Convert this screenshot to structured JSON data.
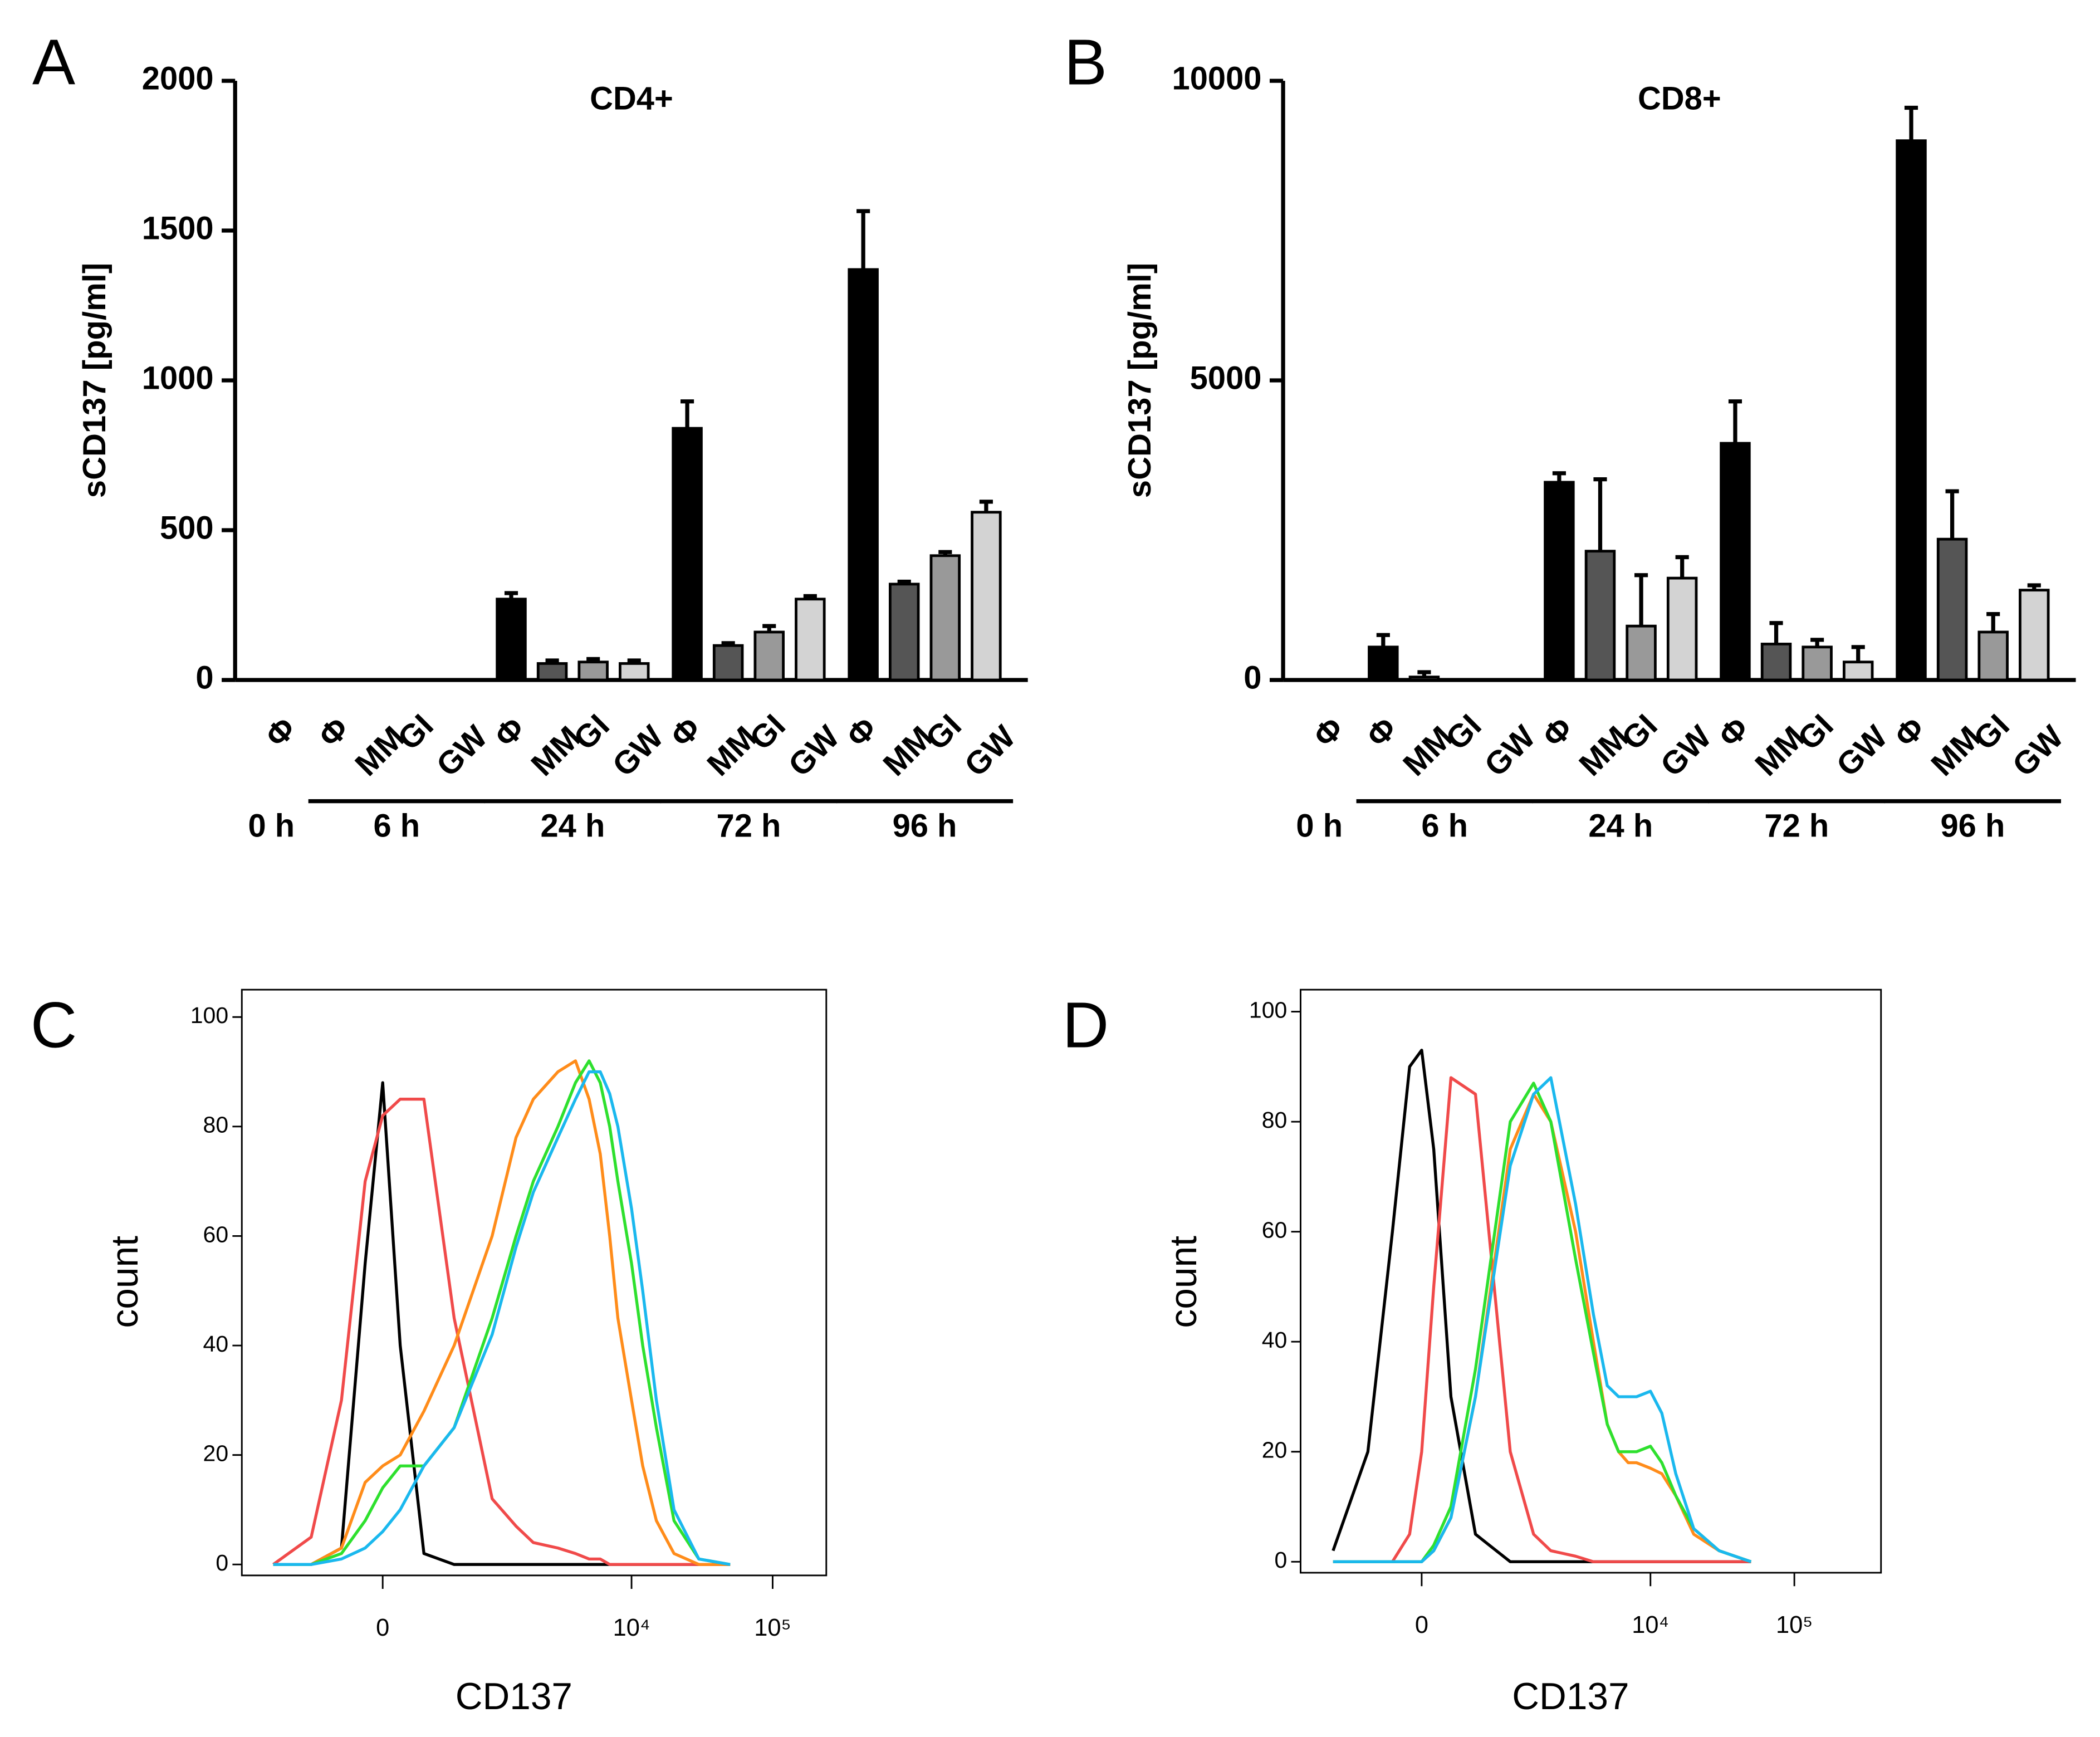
{
  "chart_data": [
    {
      "type": "bar",
      "panel": "A",
      "title": "CD4+",
      "ylabel": "sCD137 [pg/ml]",
      "ylim": [
        0,
        2000
      ],
      "yticks": [
        0,
        500,
        1000,
        1500,
        2000
      ],
      "colors": [
        "#000000",
        "#555555",
        "#999999",
        "#d3d3d3"
      ],
      "groups": [
        {
          "label": "0 h",
          "categories": [
            "Φ"
          ],
          "values": [
            0
          ],
          "errors": [
            0
          ]
        },
        {
          "label": "6 h",
          "categories": [
            "Φ",
            "MM",
            "GI",
            "GW"
          ],
          "values": [
            0,
            0,
            0,
            0
          ],
          "errors": [
            0,
            0,
            0,
            0
          ]
        },
        {
          "label": "24 h",
          "categories": [
            "Φ",
            "MM",
            "GI",
            "GW"
          ],
          "values": [
            270,
            55,
            60,
            55
          ],
          "errors": [
            20,
            10,
            10,
            10
          ]
        },
        {
          "label": "72 h",
          "categories": [
            "Φ",
            "MM",
            "GI",
            "GW"
          ],
          "values": [
            840,
            115,
            160,
            270
          ],
          "errors": [
            90,
            8,
            20,
            10
          ]
        },
        {
          "label": "96 h",
          "categories": [
            "Φ",
            "MM",
            "GI",
            "GW"
          ],
          "values": [
            1370,
            320,
            415,
            560
          ],
          "errors": [
            195,
            8,
            12,
            35
          ]
        }
      ]
    },
    {
      "type": "bar",
      "panel": "B",
      "title": "CD8+",
      "ylabel": "sCD137 [pg/ml]",
      "ylim": [
        0,
        10000
      ],
      "yticks": [
        0,
        5000,
        10000
      ],
      "colors": [
        "#000000",
        "#555555",
        "#999999",
        "#d3d3d3"
      ],
      "groups": [
        {
          "label": "0 h",
          "categories": [
            "Φ"
          ],
          "values": [
            0
          ],
          "errors": [
            0
          ]
        },
        {
          "label": "6 h",
          "categories": [
            "Φ",
            "MM",
            "GI",
            "GW"
          ],
          "values": [
            550,
            50,
            0,
            0
          ],
          "errors": [
            200,
            80,
            0,
            0
          ]
        },
        {
          "label": "24 h",
          "categories": [
            "Φ",
            "MM",
            "GI",
            "GW"
          ],
          "values": [
            3300,
            2150,
            900,
            1700
          ],
          "errors": [
            150,
            1200,
            850,
            350
          ]
        },
        {
          "label": "72 h",
          "categories": [
            "Φ",
            "MM",
            "GI",
            "GW"
          ],
          "values": [
            3950,
            600,
            550,
            300
          ],
          "errors": [
            700,
            350,
            120,
            250
          ]
        },
        {
          "label": "96 h",
          "categories": [
            "Φ",
            "MM",
            "GI",
            "GW"
          ],
          "values": [
            9000,
            2350,
            800,
            1500
          ],
          "errors": [
            550,
            800,
            300,
            80
          ]
        }
      ]
    },
    {
      "type": "line",
      "panel": "C",
      "xlabel": "CD137",
      "ylabel": "count",
      "xscale": "asinh",
      "xscale_cofactor": 345,
      "xlim": [
        -1700,
        240000
      ],
      "xticks": [
        0,
        {
          "value": 10000,
          "label": "10⁴"
        },
        {
          "value": 100000,
          "label": "10⁵"
        }
      ],
      "ylim": [
        -2,
        105
      ],
      "yticks": [
        0,
        20,
        40,
        60,
        80,
        100
      ],
      "x": [
        -1000,
        -500,
        -250,
        -100,
        0,
        100,
        250,
        500,
        1000,
        1500,
        2000,
        3000,
        4000,
        5000,
        6000,
        7000,
        8000,
        10000,
        12000,
        15000,
        20000,
        30000,
        50000
      ],
      "series": [
        {
          "color": "#000000",
          "values": [
            0,
            0,
            3,
            55,
            88,
            40,
            2,
            0,
            0,
            0,
            0,
            0,
            0,
            0,
            0,
            0,
            0,
            0,
            0,
            0,
            0,
            0,
            0
          ]
        },
        {
          "color": "#f04a4a",
          "values": [
            0,
            5,
            30,
            70,
            82,
            85,
            85,
            45,
            12,
            7,
            4,
            3,
            2,
            1,
            1,
            0,
            0,
            0,
            0,
            0,
            0,
            0,
            0
          ]
        },
        {
          "color": "#ff8c1a",
          "values": [
            0,
            0,
            3,
            15,
            18,
            20,
            28,
            40,
            60,
            78,
            85,
            90,
            92,
            85,
            75,
            60,
            45,
            30,
            18,
            8,
            2,
            0,
            0
          ]
        },
        {
          "color": "#2ee02e",
          "values": [
            0,
            0,
            2,
            8,
            14,
            18,
            18,
            25,
            45,
            60,
            70,
            80,
            88,
            92,
            88,
            80,
            70,
            55,
            40,
            25,
            8,
            1,
            0
          ]
        },
        {
          "color": "#1ab8ee",
          "values": [
            0,
            0,
            1,
            3,
            6,
            10,
            18,
            25,
            42,
            58,
            68,
            78,
            85,
            90,
            90,
            86,
            80,
            65,
            50,
            30,
            10,
            1,
            0
          ]
        }
      ]
    },
    {
      "type": "line",
      "panel": "D",
      "xlabel": "CD137",
      "ylabel": "count",
      "xscale": "asinh",
      "xscale_cofactor": 515,
      "xlim": [
        -1750,
        400000
      ],
      "xticks": [
        0,
        {
          "value": 10000,
          "label": "10⁴"
        },
        {
          "value": 100000,
          "label": "10⁵"
        }
      ],
      "ylim": [
        -2,
        104
      ],
      "yticks": [
        0,
        20,
        40,
        60,
        80,
        100
      ],
      "x": [
        -1000,
        -500,
        -250,
        -100,
        0,
        100,
        250,
        500,
        1000,
        1500,
        2000,
        3000,
        4000,
        5000,
        6000,
        7000,
        8000,
        10000,
        12000,
        15000,
        20000,
        30000,
        50000
      ],
      "series": [
        {
          "color": "#000000",
          "values": [
            2,
            20,
            60,
            90,
            93,
            75,
            30,
            5,
            0,
            0,
            0,
            0,
            0,
            0,
            0,
            0,
            0,
            0,
            0,
            0,
            0,
            0,
            0
          ]
        },
        {
          "color": "#f04a4a",
          "values": [
            0,
            0,
            0,
            5,
            20,
            50,
            88,
            85,
            20,
            5,
            2,
            1,
            0,
            0,
            0,
            0,
            0,
            0,
            0,
            0,
            0,
            0,
            0
          ]
        },
        {
          "color": "#ff8c1a",
          "values": [
            0,
            0,
            0,
            0,
            0,
            2,
            8,
            30,
            75,
            85,
            80,
            60,
            40,
            25,
            20,
            18,
            18,
            17,
            16,
            12,
            5,
            2,
            0
          ]
        },
        {
          "color": "#2ee02e",
          "values": [
            0,
            0,
            0,
            0,
            0,
            3,
            10,
            35,
            80,
            87,
            80,
            55,
            38,
            25,
            20,
            20,
            20,
            21,
            18,
            12,
            6,
            2,
            0
          ]
        },
        {
          "color": "#1ab8ee",
          "values": [
            0,
            0,
            0,
            0,
            0,
            2,
            8,
            30,
            72,
            85,
            88,
            65,
            45,
            32,
            30,
            30,
            30,
            31,
            27,
            16,
            6,
            2,
            0
          ]
        }
      ]
    }
  ]
}
